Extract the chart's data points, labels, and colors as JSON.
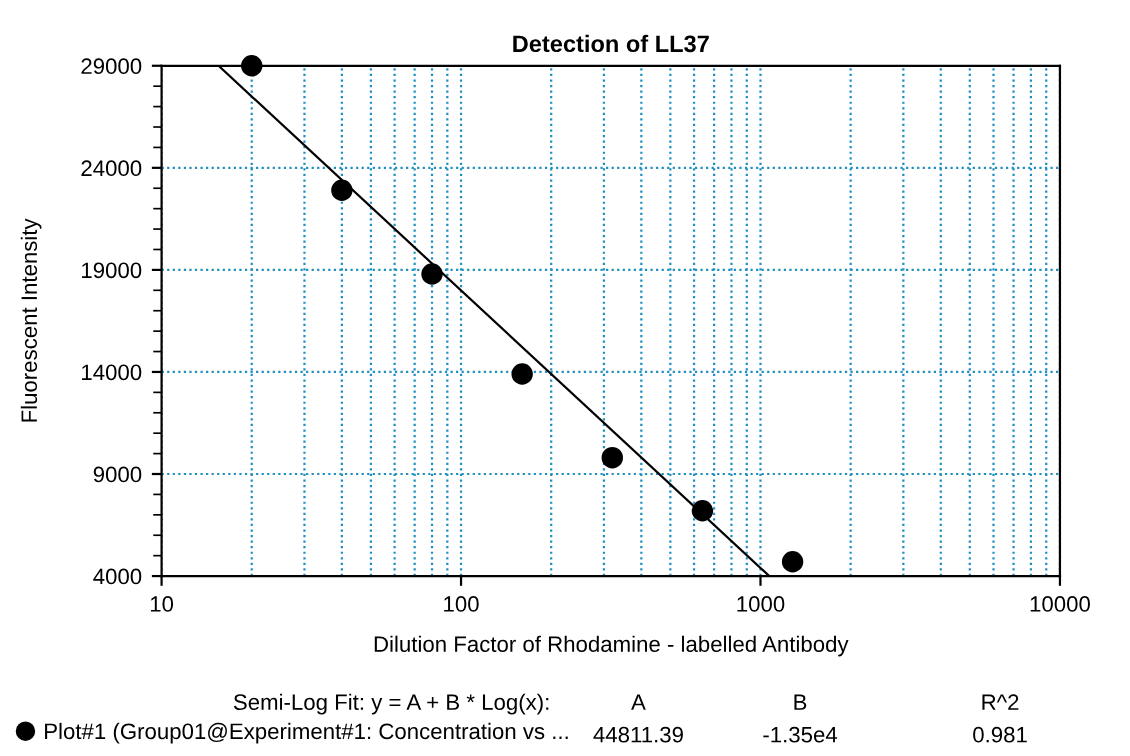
{
  "chart_data": {
    "type": "scatter",
    "title": "Detection of LL37",
    "xlabel": "Dilution Factor of Rhodamine - labelled Antibody",
    "ylabel": "Fluorescent Intensity",
    "log": "x",
    "xlim": [
      10,
      10000
    ],
    "xticks": [
      10,
      100,
      1000,
      10000
    ],
    "ylim": [
      4000,
      29000
    ],
    "yticks": [
      4000,
      9000,
      14000,
      19000,
      24000,
      29000
    ],
    "grid": true,
    "legend": "bottom left",
    "series": [
      {
        "name": "Plot#1 (Group01@Experiment#1: Concentration vs ...",
        "color": "#000000",
        "marker": "circle",
        "x": [
          20,
          40,
          80,
          160,
          320,
          640,
          1280
        ],
        "values": [
          29000,
          22900,
          18800,
          13900,
          9800,
          7200,
          4700
        ]
      },
      {
        "type": "line",
        "color": "#000000",
        "marker": "none",
        "x": [
          15.5,
          1070
        ],
        "values": [
          29000,
          4000
        ]
      }
    ],
    "annotations": [
      "Semi-Log Fit: y = A + B * Log(x):",
      "A",
      "B",
      "R^2",
      "44811.39",
      "-1.35e4",
      "0.981"
    ]
  }
}
